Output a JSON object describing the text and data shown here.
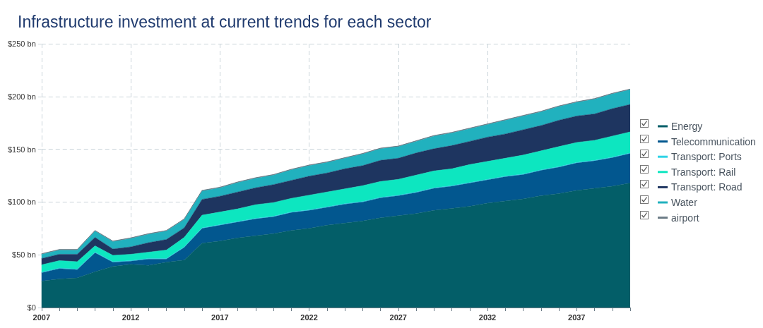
{
  "chart_data": {
    "type": "area",
    "stacked": true,
    "title": "Infrastructure investment at current trends for each sector",
    "x": [
      2007,
      2008,
      2009,
      2010,
      2011,
      2012,
      2013,
      2014,
      2015,
      2016,
      2017,
      2018,
      2019,
      2020,
      2021,
      2022,
      2023,
      2024,
      2025,
      2026,
      2027,
      2028,
      2029,
      2030,
      2031,
      2032,
      2033,
      2034,
      2035,
      2036,
      2037,
      2038,
      2039,
      2040
    ],
    "series": [
      {
        "name": "Energy",
        "color": "#035e68",
        "values": [
          25,
          27,
          28,
          34,
          39,
          41,
          40,
          43,
          45,
          61,
          63,
          66,
          68,
          70,
          73,
          75,
          78,
          80,
          82,
          85,
          87,
          89,
          92,
          94,
          96,
          99,
          101,
          103,
          106,
          108,
          111,
          113,
          115,
          118
        ]
      },
      {
        "name": "Telecommunication",
        "color": "#02578f",
        "values": [
          8,
          10,
          8,
          18,
          4,
          3,
          6,
          3,
          12,
          14,
          15,
          15,
          16,
          16,
          17,
          17,
          17,
          18,
          18,
          19,
          19,
          20,
          21,
          21,
          22,
          22,
          23,
          23,
          24,
          25,
          26,
          26,
          27,
          28
        ]
      },
      {
        "name": "Transport: Ports",
        "color": "#2fd3e6",
        "values": [
          0.5,
          0.5,
          0.5,
          0.5,
          0.5,
          0.5,
          0.5,
          0.5,
          0.5,
          0.5,
          0.5,
          0.5,
          0.5,
          0.5,
          0.5,
          0.5,
          0.5,
          0.5,
          0.5,
          0.5,
          0.5,
          0.5,
          0.5,
          0.5,
          0.5,
          0.5,
          0.5,
          0.5,
          0.5,
          0.5,
          0.5,
          0.5,
          0.5,
          0.5
        ]
      },
      {
        "name": "Transport: Rail",
        "color": "#0de6c0",
        "values": [
          7,
          7,
          7,
          6,
          6,
          6,
          6,
          8,
          9,
          12,
          12,
          12,
          13,
          13,
          13,
          14,
          14,
          14,
          15,
          15,
          15,
          16,
          16,
          16,
          17,
          17,
          17,
          18,
          18,
          19,
          19,
          19,
          20,
          20
        ]
      },
      {
        "name": "Transport: Road",
        "color": "#1e3560",
        "values": [
          6,
          6,
          7,
          8,
          6,
          7,
          9,
          10,
          9,
          15,
          15,
          16,
          16,
          17,
          17,
          18,
          18,
          19,
          19,
          20,
          20,
          21,
          21,
          22,
          22,
          23,
          23,
          24,
          24,
          25,
          25,
          25,
          26,
          26
        ]
      },
      {
        "name": "Water",
        "color": "#21b1be",
        "values": [
          4,
          4,
          4,
          6,
          7,
          8,
          8,
          8,
          8,
          8,
          8,
          9,
          9,
          9,
          10,
          10,
          10,
          10,
          11,
          11,
          11,
          11,
          12,
          12,
          12,
          12,
          13,
          13,
          13,
          13,
          13,
          14,
          14,
          14
        ]
      },
      {
        "name": "airport",
        "color": "#6b7b86",
        "values": [
          0.5,
          0.5,
          0.5,
          0.5,
          0.5,
          0.5,
          0.5,
          0.5,
          0.5,
          0.5,
          0.5,
          0.5,
          0.5,
          0.5,
          0.5,
          0.5,
          0.5,
          0.5,
          0.5,
          0.5,
          0.5,
          0.5,
          0.5,
          0.5,
          0.5,
          0.5,
          0.5,
          0.5,
          0.5,
          0.5,
          0.5,
          0.5,
          0.5,
          0.5
        ]
      }
    ],
    "xlim": [
      2007,
      2040
    ],
    "xticks": [
      2007,
      2012,
      2017,
      2022,
      2027,
      2032,
      2037
    ],
    "ylim": [
      0,
      250
    ],
    "yticks": [
      {
        "value": 0,
        "label": "$0"
      },
      {
        "value": 50,
        "label": "$50 bn"
      },
      {
        "value": 100,
        "label": "$100 bn"
      },
      {
        "value": 150,
        "label": "$150 bn"
      },
      {
        "value": 200,
        "label": "$200 bn"
      },
      {
        "value": 250,
        "label": "$250 bn"
      }
    ],
    "grid": true,
    "legend": "right"
  }
}
